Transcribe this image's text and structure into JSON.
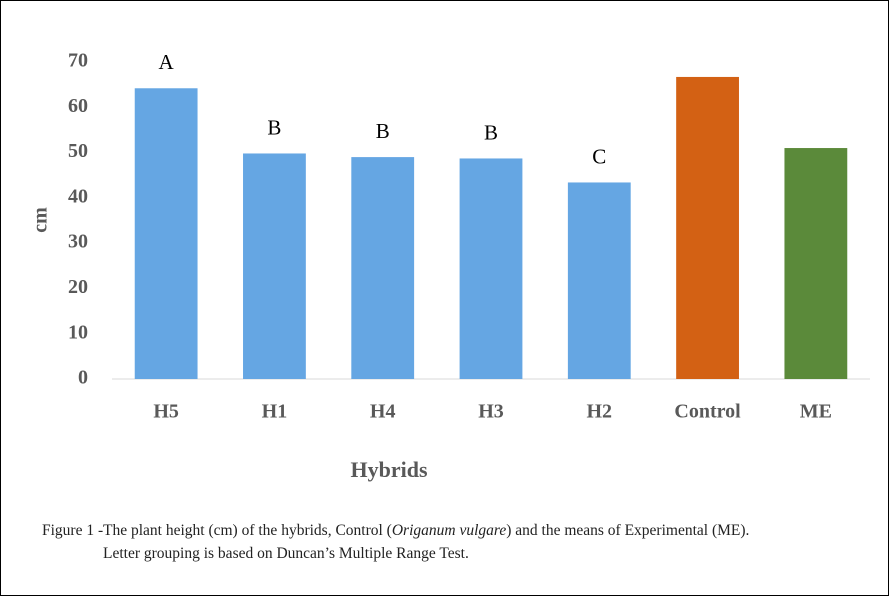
{
  "chart_data": {
    "type": "bar",
    "categories": [
      "H5",
      "H1",
      "H4",
      "H3",
      "H2",
      "Control",
      "ME"
    ],
    "values": [
      64.2,
      49.8,
      49.0,
      48.7,
      43.4,
      66.7,
      51.0
    ],
    "colors": [
      "#65a6e3",
      "#65a6e3",
      "#65a6e3",
      "#65a6e3",
      "#65a6e3",
      "#d36114",
      "#5b8a3a"
    ],
    "letters": [
      "A",
      "B",
      "B",
      "B",
      "C",
      null,
      null
    ],
    "ylim": [
      0,
      70
    ],
    "yticks": [
      0,
      10,
      20,
      30,
      40,
      50,
      60,
      70
    ],
    "ylabel": "cm",
    "xlabel": "Hybrids",
    "grid": false
  },
  "caption": {
    "prefix": "Figure 1 -",
    "before_italic": "The plant height (cm) of the hybrids, Control (",
    "italic": "Origanum vulgare",
    "after_italic": ") and the means of Experimental (ME).",
    "line2": "Letter grouping is based on Duncan’s Multiple Range Test."
  }
}
